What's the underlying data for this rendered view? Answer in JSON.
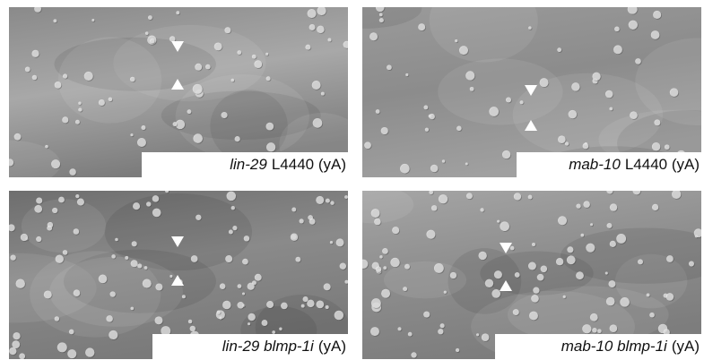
{
  "panels": [
    {
      "label": {
        "italic": "lin-29",
        "plain": "L4440 (yA)"
      }
    },
    {
      "label": {
        "italic": "mab-10",
        "plain": "L4440 (yA)"
      }
    },
    {
      "label": {
        "italic": "lin-29 blmp-1i",
        "plain": "(yA)"
      }
    },
    {
      "label": {
        "italic": "mab-10 blmp-1i",
        "plain": "(yA)"
      }
    }
  ]
}
